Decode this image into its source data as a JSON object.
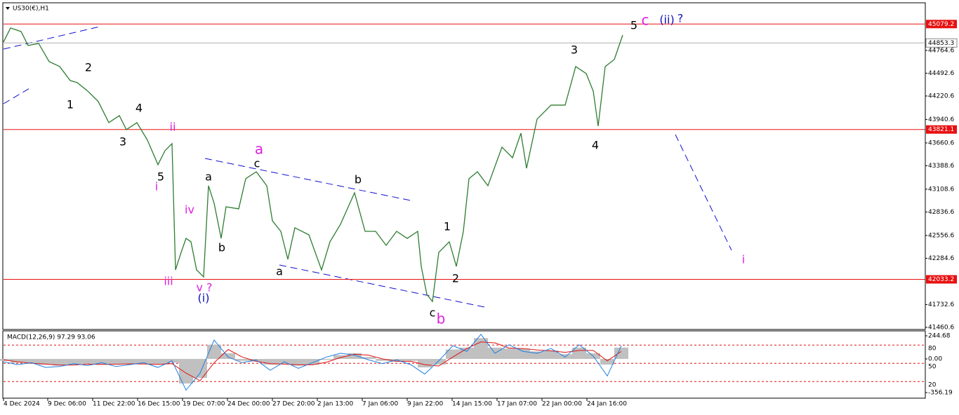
{
  "chart_data": [
    {
      "type": "line",
      "title": "US30(€),H1",
      "x": [
        0,
        10,
        25,
        35,
        50,
        65,
        80,
        95,
        105,
        120,
        135,
        150,
        165,
        175,
        190,
        205,
        220,
        230,
        240,
        245,
        253,
        260,
        267,
        275,
        285,
        292,
        300,
        310,
        317,
        335,
        345,
        360,
        375,
        383,
        395,
        405,
        415,
        435,
        453,
        465,
        480,
        500,
        515,
        530,
        545,
        560,
        575,
        590,
        595,
        603,
        611,
        620,
        635,
        645,
        655,
        663,
        675,
        690,
        710,
        725,
        737,
        745,
        760,
        780,
        800,
        815,
        830,
        840,
        847,
        857,
        870,
        882
      ],
      "series": [
        {
          "color": "#2e7d32",
          "values": [
            44865,
            45032,
            44990,
            44823,
            44848,
            44631,
            44572,
            44405,
            44380,
            44279,
            44154,
            43903,
            43986,
            43819,
            43903,
            43694,
            43401,
            43568,
            43652,
            42146,
            42355,
            42522,
            42481,
            42146,
            42063,
            43150,
            42941,
            42522,
            42899,
            42874,
            43234,
            43317,
            43150,
            42732,
            42606,
            42272,
            42648,
            42564,
            42146,
            42481,
            42690,
            43066,
            42606,
            42606,
            42439,
            42606,
            42522,
            42606,
            42188,
            41853,
            41769,
            42355,
            42481,
            42188,
            42606,
            43234,
            43317,
            43150,
            43610,
            43484,
            43777,
            43359,
            43945,
            44112,
            44112,
            44572,
            44488,
            44279,
            43861,
            44572,
            44656,
            44948
          ]
        }
      ],
      "xlim": [
        0,
        1313
      ],
      "xticks": [
        {
          "value": 0,
          "label": "4 Dec 2024"
        },
        {
          "value": 63,
          "label": "9 Dec 06:00"
        },
        {
          "value": 127,
          "label": "11 Dec 22:00"
        },
        {
          "value": 191,
          "label": "16 Dec 15:00"
        },
        {
          "value": 255,
          "label": "19 Dec 07:00"
        },
        {
          "value": 319,
          "label": "24 Dec 00:00"
        },
        {
          "value": 383,
          "label": "27 Dec 20:00"
        },
        {
          "value": 447,
          "label": "2 Jan 13:00"
        },
        {
          "value": 511,
          "label": "7 Jan 06:00"
        },
        {
          "value": 575,
          "label": "9 Jan 22:00"
        },
        {
          "value": 639,
          "label": "14 Jan 15:00"
        },
        {
          "value": 703,
          "label": "17 Jan 07:00"
        },
        {
          "value": 767,
          "label": "22 Jan 00:00"
        },
        {
          "value": 831,
          "label": "24 Jan 16:00"
        }
      ],
      "ylim": [
        41435,
        45182
      ],
      "yticks": [
        44764.6,
        44492.6,
        44220.6,
        43940.6,
        43660.6,
        43388.6,
        43108.6,
        42836.6,
        42556.6,
        42284.6,
        41732.6,
        41460.6
      ],
      "hlines": [
        {
          "value": 45079.2,
          "color": "#e81010"
        },
        {
          "value": 43821.1,
          "color": "#e81010"
        },
        {
          "value": 42033.2,
          "color": "#e81010"
        }
      ],
      "price_line": {
        "value": 44853.3,
        "color": "#b0b0b0"
      },
      "annotations": [
        {
          "text": "1",
          "color": "#000000"
        },
        {
          "text": "2",
          "color": "#000000"
        },
        {
          "text": "3",
          "color": "#000000"
        },
        {
          "text": "4",
          "color": "#000000"
        },
        {
          "text": "5",
          "color": "#000000"
        },
        {
          "text": "i",
          "color": "#e020e0"
        },
        {
          "text": "ii",
          "color": "#e020e0"
        },
        {
          "text": "iii",
          "color": "#e020e0"
        },
        {
          "text": "iv",
          "color": "#e020e0"
        },
        {
          "text": "v ?",
          "color": "#e020e0"
        },
        {
          "text": "(i)",
          "color": "#1010c0"
        },
        {
          "text": "a",
          "color": "#000000"
        },
        {
          "text": "b",
          "color": "#000000"
        },
        {
          "text": "c",
          "color": "#000000"
        },
        {
          "text": "a",
          "color": "#e020e0"
        },
        {
          "text": "a",
          "color": "#000000"
        },
        {
          "text": "b",
          "color": "#000000"
        },
        {
          "text": "c",
          "color": "#000000"
        },
        {
          "text": "b",
          "color": "#e020e0"
        },
        {
          "text": "1",
          "color": "#000000"
        },
        {
          "text": "2",
          "color": "#000000"
        },
        {
          "text": "3",
          "color": "#000000"
        },
        {
          "text": "4",
          "color": "#000000"
        },
        {
          "text": "5",
          "color": "#000000"
        },
        {
          "text": "c",
          "color": "#e020e0"
        },
        {
          "text": "(ii)",
          "color": "#1010c0"
        },
        {
          "text": "?",
          "color": "#1010c0"
        },
        {
          "text": "i",
          "color": "#e020e0"
        }
      ]
    },
    {
      "type": "bar",
      "title": "MACD(12,26,9) 97.29 93.06",
      "x": [
        0,
        20,
        40,
        60,
        80,
        100,
        120,
        140,
        160,
        180,
        200,
        220,
        240,
        260,
        280,
        300,
        320,
        340,
        360,
        380,
        400,
        420,
        440,
        460,
        480,
        500,
        520,
        540,
        560,
        580,
        600,
        620,
        640,
        660,
        680,
        700,
        720,
        740,
        760,
        780,
        800,
        820,
        840,
        860,
        880
      ],
      "series": [
        {
          "type": "bar",
          "color": "#c0c0c0",
          "values": [
            -20,
            -40,
            -50,
            -60,
            -70,
            -60,
            -50,
            -60,
            -55,
            -50,
            -55,
            -60,
            -40,
            -260,
            -200,
            150,
            60,
            -20,
            -30,
            -60,
            -50,
            -70,
            -60,
            -10,
            40,
            60,
            20,
            -20,
            -30,
            -20,
            -90,
            -60,
            100,
            120,
            220,
            120,
            110,
            110,
            80,
            90,
            50,
            120,
            60,
            -60,
            120
          ]
        },
        {
          "type": "line",
          "color": "#e01010",
          "values": [
            -10,
            -30,
            -45,
            -55,
            -65,
            -65,
            -55,
            -58,
            -56,
            -52,
            -54,
            -58,
            -50,
            -150,
            -230,
            -40,
            100,
            20,
            -25,
            -50,
            -55,
            -62,
            -62,
            -35,
            15,
            50,
            40,
            0,
            -25,
            -25,
            -60,
            -75,
            20,
            110,
            180,
            170,
            115,
            110,
            95,
            85,
            70,
            90,
            90,
            -20,
            80
          ]
        },
        {
          "type": "line",
          "color": "#1e7fe0",
          "values": [
            -30,
            -60,
            -40,
            -90,
            -80,
            -50,
            -70,
            -40,
            -80,
            -60,
            -40,
            -90,
            -20,
            -330,
            -150,
            200,
            20,
            -40,
            -10,
            -120,
            -30,
            -100,
            -40,
            20,
            60,
            40,
            -10,
            -50,
            -10,
            -60,
            -160,
            -20,
            140,
            80,
            260,
            60,
            150,
            80,
            60,
            110,
            20,
            150,
            30,
            -180,
            140
          ]
        }
      ],
      "xlim": [
        0,
        1313
      ],
      "ylim": [
        -393,
        282
      ],
      "yticks": [
        244.68,
        {
          "value": 0,
          "label": "0.00"
        },
        -356.19
      ],
      "y2lim": [
        -4,
        101
      ],
      "y2ticks": [
        80,
        50,
        20
      ],
      "y2color": "#e01010"
    }
  ]
}
